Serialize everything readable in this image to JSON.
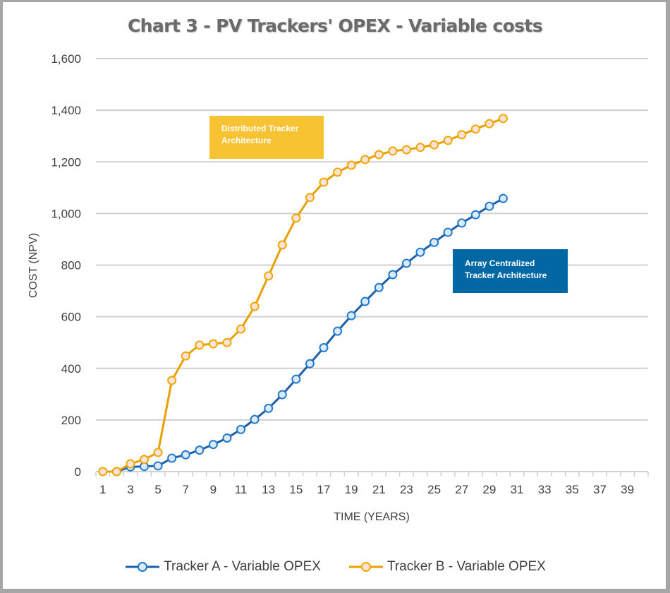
{
  "chart_data": {
    "type": "line",
    "title": "Chart 3 - PV Trackers'  OPEX - Variable  costs",
    "xlabel": "TIME (YEARS)",
    "ylabel": "COST (NPV)",
    "ylim": [
      0,
      1600
    ],
    "y_ticks": [
      0,
      200,
      400,
      600,
      800,
      1000,
      1200,
      1400,
      1600
    ],
    "y_tick_labels": [
      "0",
      "200",
      "400",
      "600",
      "800",
      "1,000",
      "1,200",
      "1,400",
      "1,600"
    ],
    "x_categories_count": 40,
    "x_tick_labels": [
      "1",
      "3",
      "5",
      "7",
      "9",
      "11",
      "13",
      "15",
      "17",
      "19",
      "21",
      "23",
      "25",
      "27",
      "29",
      "31",
      "33",
      "35",
      "37",
      "39"
    ],
    "grid": "horizontal",
    "legend_position": "bottom",
    "series": [
      {
        "name": "Tracker A - Variable OPEX",
        "color": "#1f5fa8",
        "marker_fill": "#dde9f6",
        "x": [
          2,
          3,
          4,
          5,
          6,
          7,
          8,
          9,
          10,
          11,
          12,
          13,
          14,
          15,
          16,
          17,
          18,
          19,
          20,
          21,
          22,
          23,
          24,
          25,
          26,
          27,
          28,
          29,
          30
        ],
        "values": [
          0,
          18,
          20,
          22,
          52,
          65,
          83,
          105,
          130,
          163,
          202,
          245,
          298,
          358,
          418,
          480,
          544,
          604,
          659,
          713,
          763,
          807,
          850,
          888,
          927,
          963,
          995,
          1028,
          1058
        ]
      },
      {
        "name": "Tracker B - Variable OPEX",
        "color": "#e8a000",
        "marker_fill": "#fbe3dc",
        "x": [
          1,
          2,
          3,
          4,
          5,
          6,
          7,
          8,
          9,
          10,
          11,
          12,
          13,
          14,
          15,
          16,
          17,
          18,
          19,
          20,
          21,
          22,
          23,
          24,
          25,
          26,
          27,
          28,
          29,
          30
        ],
        "values": [
          0,
          0,
          30,
          47,
          74,
          353,
          448,
          490,
          495,
          500,
          552,
          640,
          758,
          878,
          982,
          1062,
          1121,
          1160,
          1187,
          1209,
          1228,
          1242,
          1247,
          1256,
          1266,
          1283,
          1305,
          1327,
          1348,
          1368
        ]
      }
    ],
    "annotations": [
      {
        "text_lines": [
          "Distributed Tracker",
          "Architecture"
        ],
        "color": "#f8c332",
        "series": "Tracker B - Variable OPEX"
      },
      {
        "text_lines": [
          "Array Centralized",
          "Tracker Architecture"
        ],
        "color": "#0067a5",
        "series": "Tracker A - Variable OPEX"
      }
    ]
  }
}
